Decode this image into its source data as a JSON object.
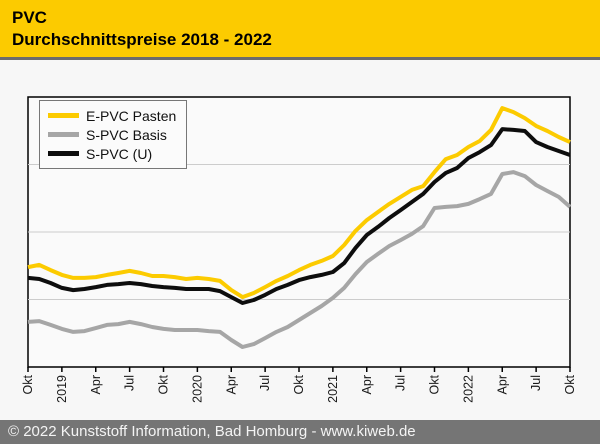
{
  "header": {
    "title_line1": "PVC",
    "title_line2": "Durchschnittspreise 2018 - 2022"
  },
  "legend": {
    "items": [
      {
        "label": "E-PVC Pasten",
        "color": "#fccb00"
      },
      {
        "label": "S-PVC Basis",
        "color": "#a6a6a6"
      },
      {
        "label": "S-PVC (U)",
        "color": "#0d0d0d"
      }
    ]
  },
  "colors": {
    "header_bg": "#fccb00",
    "header_border": "#6b6b6b",
    "footer_bg": "#757575",
    "page_bg": "#f7f7f7",
    "plot_bg": "#fafafa",
    "plot_border": "#000000",
    "gridline": "#cccccc",
    "tick": "#000000",
    "tick_label": "#1a1a1a"
  },
  "chart_data": {
    "type": "line",
    "title": "PVC Durchschnittspreise 2018 - 2022",
    "xlabel": "",
    "ylabel": "",
    "y_axis_labels_visible": false,
    "y_scale_note": "values are percent of plot height; no numeric y-axis labels are shown in the chart",
    "ylim": [
      0,
      100
    ],
    "gridlines_y_percent": [
      25,
      50,
      75
    ],
    "legend_position": "top-left",
    "x_start": "Okt 2018",
    "x_end": "Okt 2022",
    "points_per_series": 49,
    "tick_every_n_points": 3,
    "x_tick_labels": [
      "Okt",
      "2019",
      "Apr",
      "Jul",
      "Okt",
      "2020",
      "Apr",
      "Jul",
      "Okt",
      "2021",
      "Apr",
      "Jul",
      "Okt",
      "2022",
      "Apr",
      "Jul",
      "Okt"
    ],
    "series": [
      {
        "name": "E-PVC Pasten",
        "color": "#fccb00",
        "stroke_width": 4,
        "values": [
          37.0,
          37.8,
          35.9,
          34.1,
          33.0,
          33.0,
          33.3,
          34.1,
          34.8,
          35.6,
          34.8,
          33.7,
          33.7,
          33.3,
          32.6,
          33.0,
          32.6,
          31.9,
          28.5,
          25.9,
          27.4,
          29.6,
          31.9,
          33.7,
          35.9,
          37.8,
          39.3,
          41.1,
          45.2,
          50.4,
          54.4,
          57.4,
          60.4,
          63.0,
          65.6,
          67.0,
          72.2,
          77.0,
          78.5,
          81.5,
          83.7,
          87.8,
          95.9,
          94.4,
          92.2,
          89.3,
          87.4,
          85.2,
          83.3
        ]
      },
      {
        "name": "S-PVC Basis",
        "color": "#a6a6a6",
        "stroke_width": 4,
        "values": [
          16.7,
          17.0,
          15.6,
          14.1,
          13.0,
          13.3,
          14.4,
          15.6,
          15.9,
          16.7,
          15.9,
          14.8,
          14.1,
          13.7,
          13.7,
          13.7,
          13.3,
          13.0,
          10.0,
          7.4,
          8.5,
          10.7,
          13.0,
          14.8,
          17.4,
          20.0,
          22.6,
          25.6,
          29.3,
          34.4,
          38.9,
          41.9,
          44.8,
          47.0,
          49.3,
          52.2,
          58.9,
          59.3,
          59.6,
          60.4,
          62.2,
          64.1,
          71.5,
          72.2,
          70.7,
          67.4,
          65.2,
          63.0,
          59.3
        ]
      },
      {
        "name": "S-PVC (U)",
        "color": "#0d0d0d",
        "stroke_width": 4,
        "values": [
          33.0,
          32.6,
          31.1,
          29.3,
          28.5,
          28.9,
          29.6,
          30.4,
          30.7,
          31.1,
          30.7,
          30.0,
          29.6,
          29.3,
          28.9,
          28.9,
          28.9,
          28.1,
          25.9,
          23.7,
          24.8,
          26.7,
          28.9,
          30.4,
          32.2,
          33.3,
          34.1,
          35.2,
          38.5,
          44.1,
          48.9,
          51.9,
          55.2,
          58.1,
          61.1,
          64.1,
          68.5,
          71.9,
          73.7,
          77.4,
          79.6,
          82.2,
          88.1,
          87.8,
          87.4,
          83.3,
          81.5,
          80.0,
          78.5
        ]
      }
    ]
  },
  "footer": {
    "text": "© 2022 Kunststoff Information, Bad Homburg - www.kiweb.de"
  }
}
